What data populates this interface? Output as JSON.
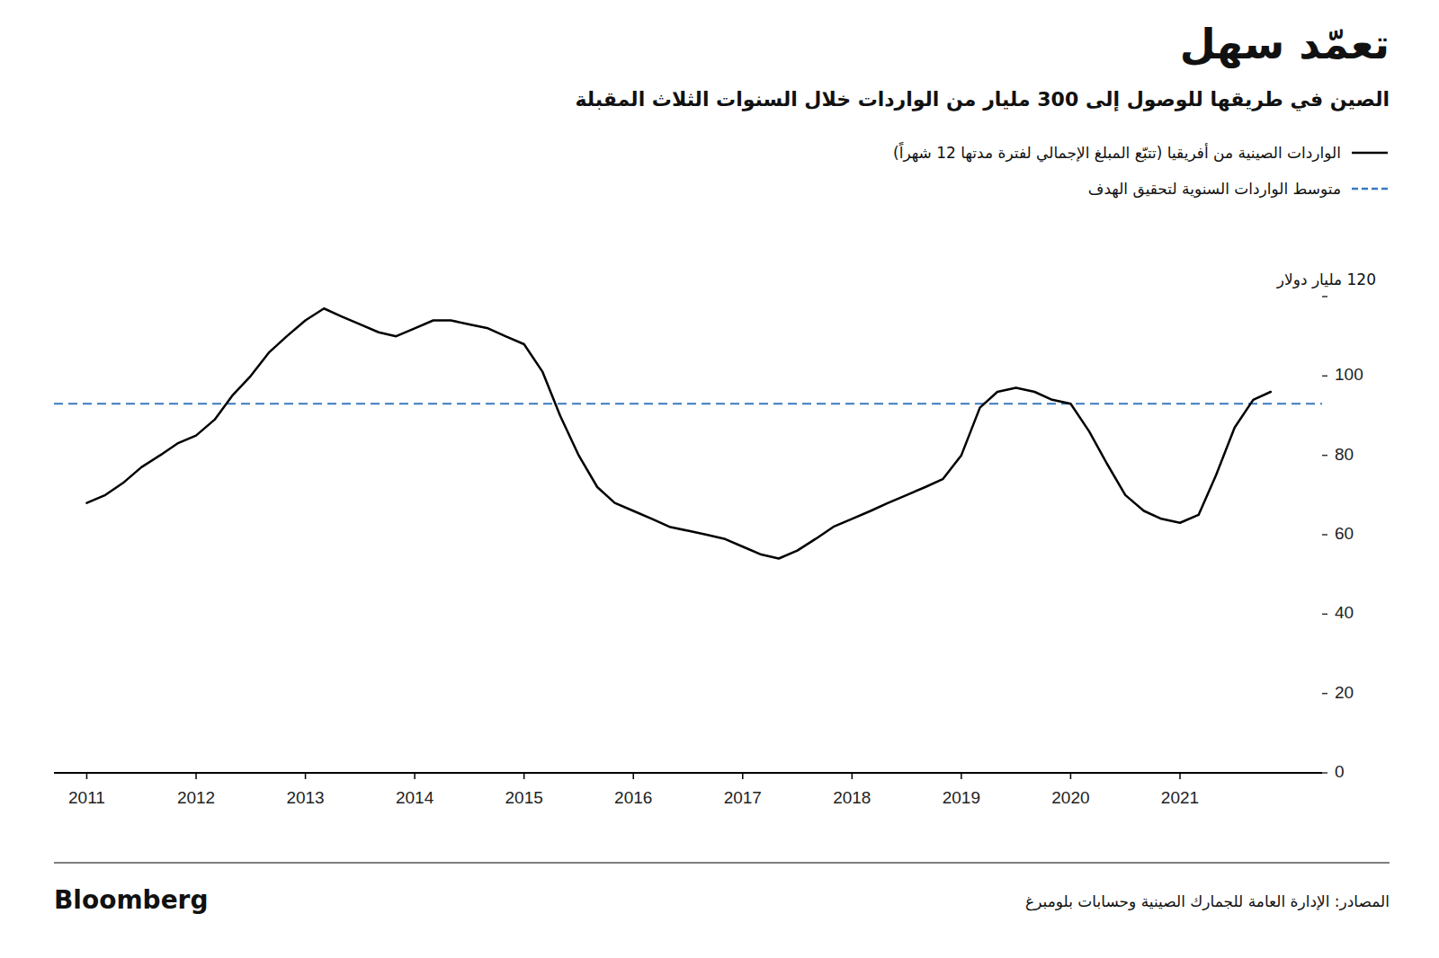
{
  "chart_data": {
    "type": "line",
    "title": "تعمّد سهل",
    "subtitle": "الصين في طريقها للوصول إلى 300 مليار من الواردات خلال السنوات الثلاث المقبلة",
    "x": [
      2011.0,
      2011.17,
      2011.33,
      2011.5,
      2011.67,
      2011.83,
      2012.0,
      2012.17,
      2012.33,
      2012.5,
      2012.67,
      2012.83,
      2013.0,
      2013.17,
      2013.33,
      2013.5,
      2013.67,
      2013.83,
      2014.0,
      2014.17,
      2014.33,
      2014.5,
      2014.67,
      2014.83,
      2015.0,
      2015.17,
      2015.33,
      2015.5,
      2015.67,
      2015.83,
      2016.0,
      2016.17,
      2016.33,
      2016.5,
      2016.67,
      2016.83,
      2017.0,
      2017.17,
      2017.33,
      2017.5,
      2017.67,
      2017.83,
      2018.0,
      2018.17,
      2018.33,
      2018.5,
      2018.67,
      2018.83,
      2019.0,
      2019.17,
      2019.33,
      2019.5,
      2019.67,
      2019.83,
      2020.0,
      2020.17,
      2020.33,
      2020.5,
      2020.67,
      2020.83,
      2021.0,
      2021.17,
      2021.33,
      2021.5,
      2021.67,
      2021.83
    ],
    "series": [
      {
        "name": "الواردات الصينية من أفريقيا (تتبّع المبلغ الإجمالي لفترة مدتها 12 شهراً)",
        "color": "#000000",
        "values": [
          68,
          70,
          73,
          77,
          80,
          83,
          85,
          89,
          95,
          100,
          106,
          110,
          114,
          117,
          115,
          113,
          111,
          110,
          112,
          114,
          114,
          113,
          112,
          110,
          108,
          101,
          90,
          80,
          72,
          68,
          66,
          64,
          62,
          61,
          60,
          59,
          57,
          55,
          54,
          56,
          59,
          62,
          64,
          66,
          68,
          70,
          72,
          74,
          80,
          92,
          96,
          97,
          96,
          94,
          93,
          86,
          78,
          70,
          66,
          64,
          63,
          65,
          75,
          87,
          94,
          96
        ]
      }
    ],
    "reference_line": {
      "name": "متوسط الواردات السنوية لتحقيق الهدف",
      "value": 93,
      "color": "#3a7abf",
      "line_style": "dashed"
    },
    "xlim": [
      2010.7,
      2022.3
    ],
    "xticks": [
      2011,
      2012,
      2013,
      2014,
      2015,
      2016,
      2017,
      2018,
      2019,
      2020,
      2021
    ],
    "ylim": [
      0,
      120
    ],
    "yticks": [
      0,
      20,
      40,
      60,
      80,
      100,
      {
        "value": 120,
        "label": "120 مليار دولار"
      }
    ],
    "grid": false,
    "legend": "top",
    "source": "المصادر: الإدارة العامة للجمارك الصينية وحسابات بلومبرغ",
    "brand": "Bloomberg"
  }
}
